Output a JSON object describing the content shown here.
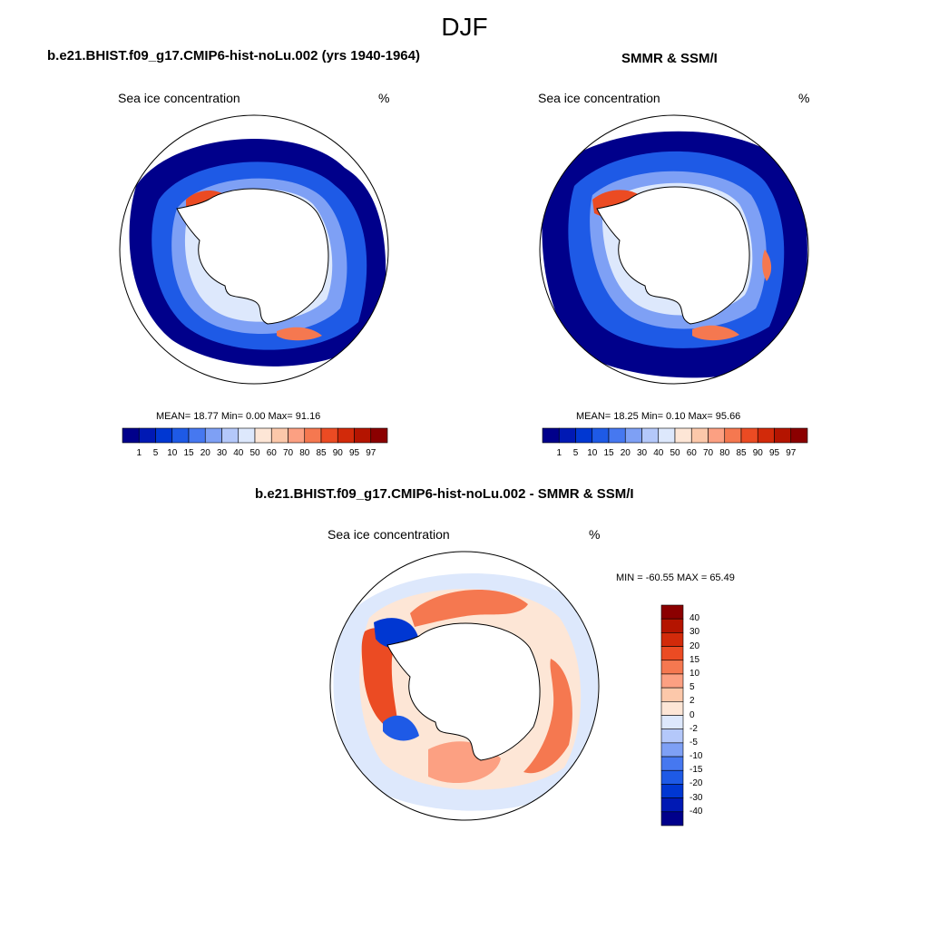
{
  "main_title": "DJF",
  "colors": {
    "h_bar": [
      "#00008b",
      "#0019b4",
      "#0037d2",
      "#1e5ae6",
      "#4678f0",
      "#7ea0f5",
      "#b4c8fa",
      "#dde8fc",
      "#fde6d6",
      "#fcc8aa",
      "#fca082",
      "#f57850",
      "#eb4b23",
      "#d22a0a",
      "#b41400",
      "#8b0000"
    ],
    "v_bar": [
      "#8b0000",
      "#b41400",
      "#d22a0a",
      "#eb4b23",
      "#f57850",
      "#fca082",
      "#fcc8aa",
      "#fde6d6",
      "#dde8fc",
      "#b4c8fa",
      "#7ea0f5",
      "#4678f0",
      "#1e5ae6",
      "#0037d2",
      "#0019b4",
      "#00008b"
    ]
  },
  "panels": {
    "model": {
      "title": "b.e21.BHIST.f09_g17.CMIP6-hist-noLu.002 (yrs 1940-1964)",
      "left_label": "Sea ice concentration",
      "right_label": "%",
      "stats": "MEAN=  18.77  Min=   0.00  Max=  91.16"
    },
    "obs": {
      "title": "SMMR & SSM/I",
      "left_label": "Sea ice concentration",
      "right_label": "%",
      "stats": "MEAN=  18.25  Min=   0.10  Max=  95.66"
    },
    "diff": {
      "title": "b.e21.BHIST.f09_g17.CMIP6-hist-noLu.002 - SMMR & SSM/I",
      "left_label": "Sea ice concentration",
      "right_label": "%",
      "stats": "MIN = -60.55 MAX =  65.49"
    }
  },
  "colorbar_ticks": [
    "1",
    "5",
    "10",
    "15",
    "20",
    "30",
    "40",
    "50",
    "60",
    "70",
    "80",
    "85",
    "90",
    "95",
    "97"
  ],
  "diff_colorbar_ticks": [
    "40",
    "30",
    "20",
    "15",
    "10",
    "5",
    "2",
    "0",
    "-2",
    "-5",
    "-10",
    "-15",
    "-20",
    "-30",
    "-40"
  ]
}
